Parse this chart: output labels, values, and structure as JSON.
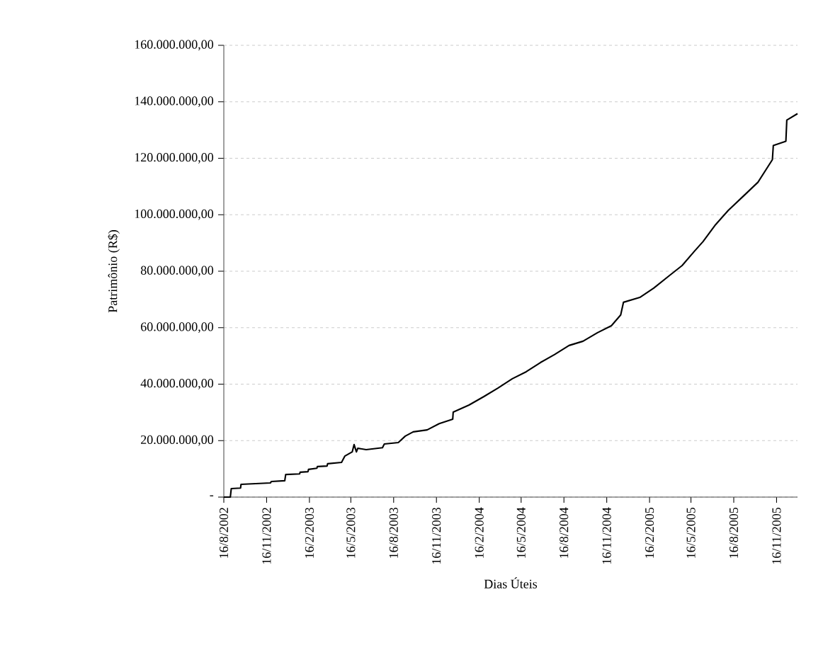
{
  "chart_data": {
    "type": "line",
    "xlabel": "Dias Úteis",
    "ylabel": "Patrimônio (R$)",
    "x": [
      "2002-08-16",
      "2002-08-30",
      "2002-09-01",
      "2002-09-21",
      "2002-09-22",
      "2002-11-24",
      "2002-11-26",
      "2002-12-25",
      "2002-12-27",
      "2003-01-26",
      "2003-01-27",
      "2003-02-13",
      "2003-02-14",
      "2003-03-04",
      "2003-03-05",
      "2003-03-26",
      "2003-03-27",
      "2003-04-26",
      "2003-05-03",
      "2003-05-19",
      "2003-05-23",
      "2003-05-28",
      "2003-05-31",
      "2003-06-18",
      "2003-07-23",
      "2003-07-27",
      "2003-08-26",
      "2003-09-10",
      "2003-09-27",
      "2003-10-27",
      "2003-11-22",
      "2003-12-21",
      "2003-12-22",
      "2004-01-25",
      "2004-02-26",
      "2004-03-27",
      "2004-04-27",
      "2004-05-27",
      "2004-06-27",
      "2004-07-27",
      "2004-08-27",
      "2004-09-26",
      "2004-10-27",
      "2004-11-26",
      "2004-12-16",
      "2004-12-22",
      "2005-01-26",
      "2005-02-25",
      "2005-03-31",
      "2005-04-27",
      "2005-05-23",
      "2005-06-11",
      "2005-07-08",
      "2005-08-04",
      "2005-09-07",
      "2005-10-07",
      "2005-11-07",
      "2005-11-09",
      "2005-12-06",
      "2005-12-08",
      "2005-12-31"
    ],
    "values": [
      0,
      0,
      3000000,
      3200000,
      4500000,
      5000000,
      5500000,
      5800000,
      8000000,
      8200000,
      8800000,
      9000000,
      9800000,
      10200000,
      10800000,
      11000000,
      11800000,
      12300000,
      14500000,
      16000000,
      18600000,
      16000000,
      17300000,
      16800000,
      17500000,
      18800000,
      19300000,
      21600000,
      23100000,
      23800000,
      26000000,
      27600000,
      30100000,
      32600000,
      35600000,
      38600000,
      41900000,
      44400000,
      47700000,
      50500000,
      53700000,
      55200000,
      58200000,
      60700000,
      64500000,
      69000000,
      70700000,
      74000000,
      78500000,
      82000000,
      87000000,
      90500000,
      96500000,
      101500000,
      106800000,
      111500000,
      119500000,
      124500000,
      126000000,
      133500000,
      135800000
    ],
    "color": "#000000",
    "line_style": "solid",
    "marker": "none",
    "xlim": [
      "2002-08-16",
      "2005-12-31"
    ],
    "xticks": [
      {
        "value": "2002-08-16",
        "label": "16/8/2002"
      },
      {
        "value": "2002-11-16",
        "label": "16/11/2002"
      },
      {
        "value": "2003-02-16",
        "label": "16/2/2003"
      },
      {
        "value": "2003-05-16",
        "label": "16/5/2003"
      },
      {
        "value": "2003-08-16",
        "label": "16/8/2003"
      },
      {
        "value": "2003-11-16",
        "label": "16/11/2003"
      },
      {
        "value": "2004-02-16",
        "label": "16/2/2004"
      },
      {
        "value": "2004-05-16",
        "label": "16/5/2004"
      },
      {
        "value": "2004-08-16",
        "label": "16/8/2004"
      },
      {
        "value": "2004-11-16",
        "label": "16/11/2004"
      },
      {
        "value": "2005-02-16",
        "label": "16/2/2005"
      },
      {
        "value": "2005-05-16",
        "label": "16/5/2005"
      },
      {
        "value": "2005-08-16",
        "label": "16/8/2005"
      },
      {
        "value": "2005-11-16",
        "label": "16/11/2005"
      }
    ],
    "ylim": [
      0,
      160000000
    ],
    "yticks": [
      {
        "value": 0,
        "label": "-"
      },
      {
        "value": 20000000,
        "label": "20.000.000,00"
      },
      {
        "value": 40000000,
        "label": "40.000.000,00"
      },
      {
        "value": 60000000,
        "label": "60.000.000,00"
      },
      {
        "value": 80000000,
        "label": "80.000.000,00"
      },
      {
        "value": 100000000,
        "label": "100.000.000,00"
      },
      {
        "value": 120000000,
        "label": "120.000.000,00"
      },
      {
        "value": 140000000,
        "label": "140.000.000,00"
      },
      {
        "value": 160000000,
        "label": "160.000.000,00"
      }
    ],
    "grid": "y"
  }
}
